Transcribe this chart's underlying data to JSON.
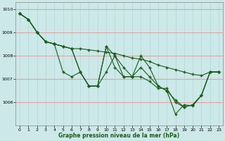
{
  "title": "",
  "xlabel": "Graphe pression niveau de la mer (hPa)",
  "ylabel": "",
  "bg_color": "#cce8e8",
  "grid_color_h": "#e8a0a0",
  "grid_color_v": "#b0d8d8",
  "line_color": "#1a5c1a",
  "xlim": [
    -0.5,
    23.5
  ],
  "ylim": [
    1005.0,
    1010.3
  ],
  "yticks": [
    1006,
    1007,
    1008,
    1009,
    1010
  ],
  "xticks": [
    0,
    1,
    2,
    3,
    4,
    5,
    6,
    7,
    8,
    9,
    10,
    11,
    12,
    13,
    14,
    15,
    16,
    17,
    18,
    19,
    20,
    21,
    22,
    23
  ],
  "series": [
    [
      1009.8,
      1009.55,
      1009.0,
      1008.6,
      1008.5,
      1008.4,
      1008.3,
      1007.3,
      1006.7,
      1006.7,
      1008.4,
      1008.0,
      1007.5,
      1007.1,
      1008.0,
      1007.5,
      1006.7,
      1006.5,
      1006.1,
      1005.8,
      1005.9,
      1006.3,
      1007.3,
      1007.3
    ],
    [
      1009.8,
      1009.55,
      1009.0,
      1008.6,
      1008.5,
      1007.3,
      1007.1,
      1007.3,
      1006.7,
      1006.7,
      1007.3,
      1008.0,
      1007.1,
      1007.1,
      1007.1,
      1006.9,
      1006.6,
      1006.6,
      1006.0,
      1005.8,
      1005.9,
      1006.3,
      1007.3,
      1007.3
    ],
    [
      1009.8,
      1009.55,
      1009.0,
      1008.6,
      1008.5,
      1008.4,
      1008.3,
      1007.3,
      1006.7,
      1006.7,
      1008.4,
      1007.5,
      1007.1,
      1007.1,
      1007.5,
      1007.1,
      1006.7,
      1006.5,
      1005.5,
      1005.9,
      1005.85,
      1006.3,
      1007.3,
      1007.3
    ],
    [
      1009.8,
      1009.55,
      1009.0,
      1008.6,
      1008.5,
      1008.4,
      1008.3,
      1008.3,
      1008.25,
      1008.2,
      1008.15,
      1008.1,
      1008.0,
      1007.9,
      1007.85,
      1007.75,
      1007.6,
      1007.5,
      1007.4,
      1007.3,
      1007.2,
      1007.15,
      1007.3,
      1007.3
    ]
  ]
}
